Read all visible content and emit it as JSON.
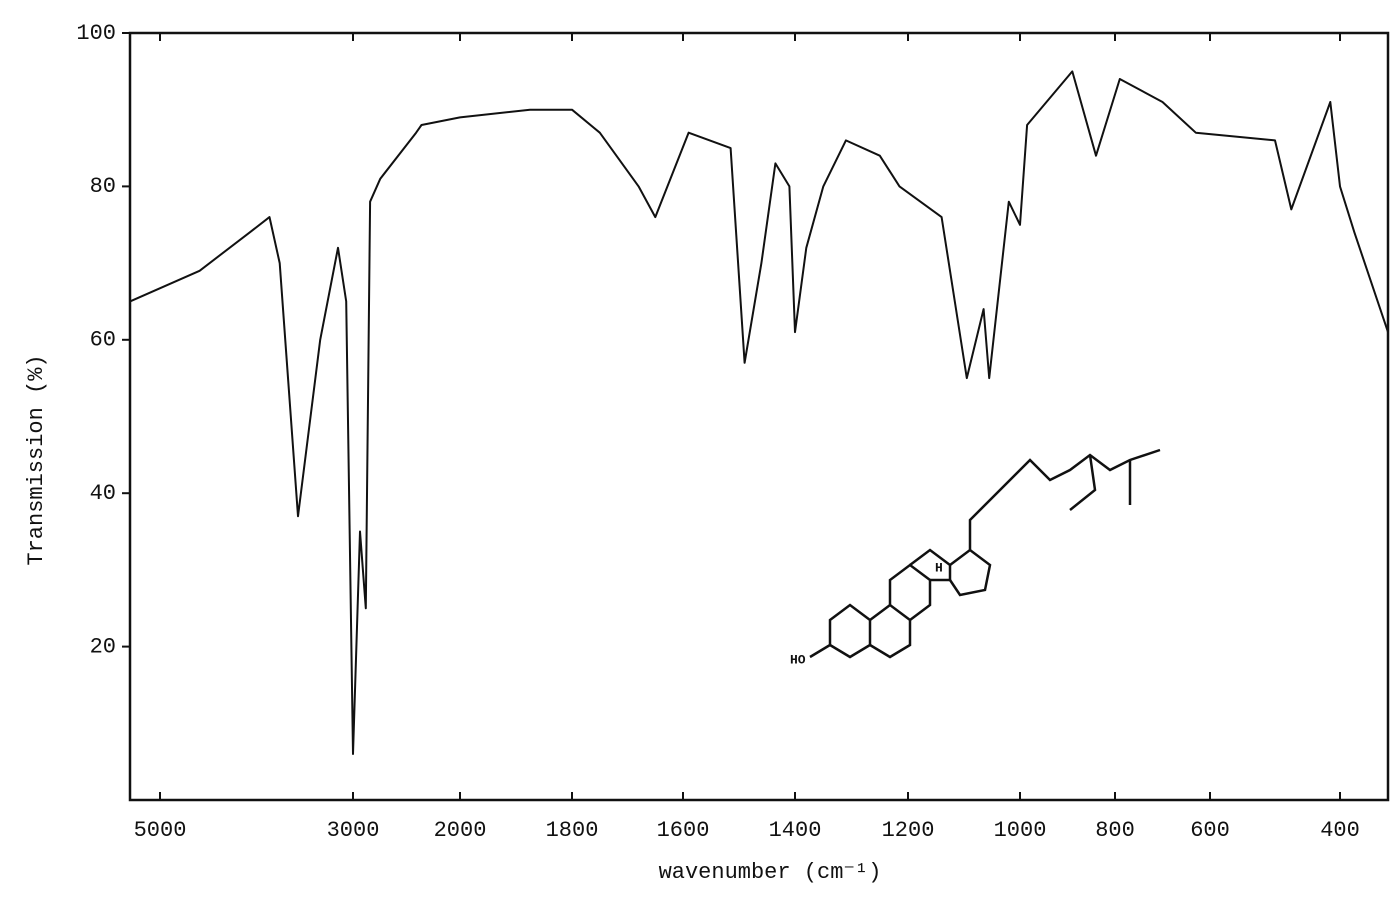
{
  "chart_data": {
    "type": "line",
    "xlabel": "wavenumber (cm⁻¹)",
    "ylabel": "Transmission (%)",
    "color": "#111111",
    "x": [
      5300,
      4590,
      4070,
      3865,
      3760,
      3570,
      3340,
      3155,
      3070,
      3000,
      2935,
      2880,
      2840,
      2745,
      2410,
      2360,
      2000,
      1875,
      1800,
      1750,
      1680,
      1650,
      1590,
      1515,
      1490,
      1460,
      1435,
      1410,
      1400,
      1380,
      1350,
      1310,
      1250,
      1215,
      1140,
      1095,
      1065,
      1055,
      1020,
      1000,
      985,
      890,
      840,
      790,
      700,
      630,
      500,
      475,
      415,
      400,
      385,
      350
    ],
    "values": [
      65,
      69,
      74,
      76,
      70,
      37,
      60,
      72,
      65,
      6,
      35,
      25,
      78,
      81,
      87,
      88,
      89,
      90,
      90,
      87,
      80,
      76,
      87,
      85,
      57,
      70,
      83,
      80,
      61,
      72,
      80,
      86,
      84,
      80,
      76,
      55,
      64,
      55,
      78,
      75,
      88,
      95,
      84,
      94,
      91,
      87,
      86,
      77,
      91,
      80,
      74,
      61
    ],
    "xlim": [
      5300,
      350
    ],
    "ylim": [
      0,
      100
    ],
    "xticks": [
      5000,
      3000,
      2000,
      1800,
      1600,
      1400,
      1200,
      1000,
      800,
      600,
      400
    ],
    "yticks": [
      20,
      40,
      60,
      80,
      100
    ],
    "structure_labels": [
      "HO",
      "H"
    ]
  }
}
